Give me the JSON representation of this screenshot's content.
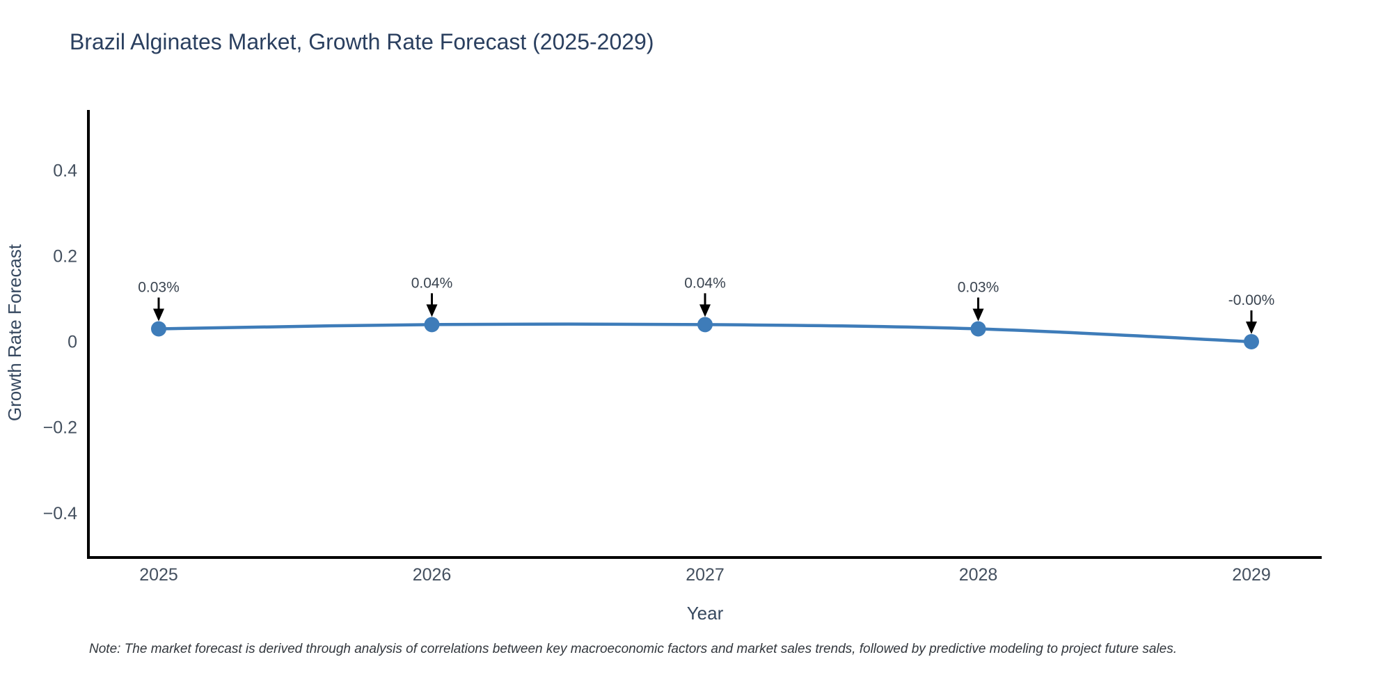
{
  "note": "Note: The market forecast is derived through analysis of correlations between key macroeconomic factors and market sales trends, followed by predictive modeling to project future sales.",
  "chart_data": {
    "type": "line",
    "title": "Brazil Alginates Market, Growth Rate Forecast (2025-2029)",
    "xlabel": "Year",
    "ylabel": "Growth Rate Forecast",
    "x": [
      "2025",
      "2026",
      "2027",
      "2028",
      "2029"
    ],
    "values": [
      0.03,
      0.04,
      0.04,
      0.03,
      -0.0
    ],
    "point_labels": [
      "0.03%",
      "0.04%",
      "0.04%",
      "0.03%",
      "-0.00%"
    ],
    "yticks": {
      "values": [
        0.4,
        0.2,
        0,
        -0.2,
        -0.4
      ],
      "labels": [
        "0.4",
        "0.2",
        "0",
        "−0.2",
        "−0.4"
      ]
    },
    "ylim": [
      -0.504,
      0.538
    ],
    "grid": false,
    "legend": "none",
    "line_shape": "spline",
    "line_color": "#3E7CB9",
    "marker_color": "#3E7CB9",
    "marker_size": 11,
    "axis_color": "#000000",
    "arrow_color": "#000000"
  }
}
